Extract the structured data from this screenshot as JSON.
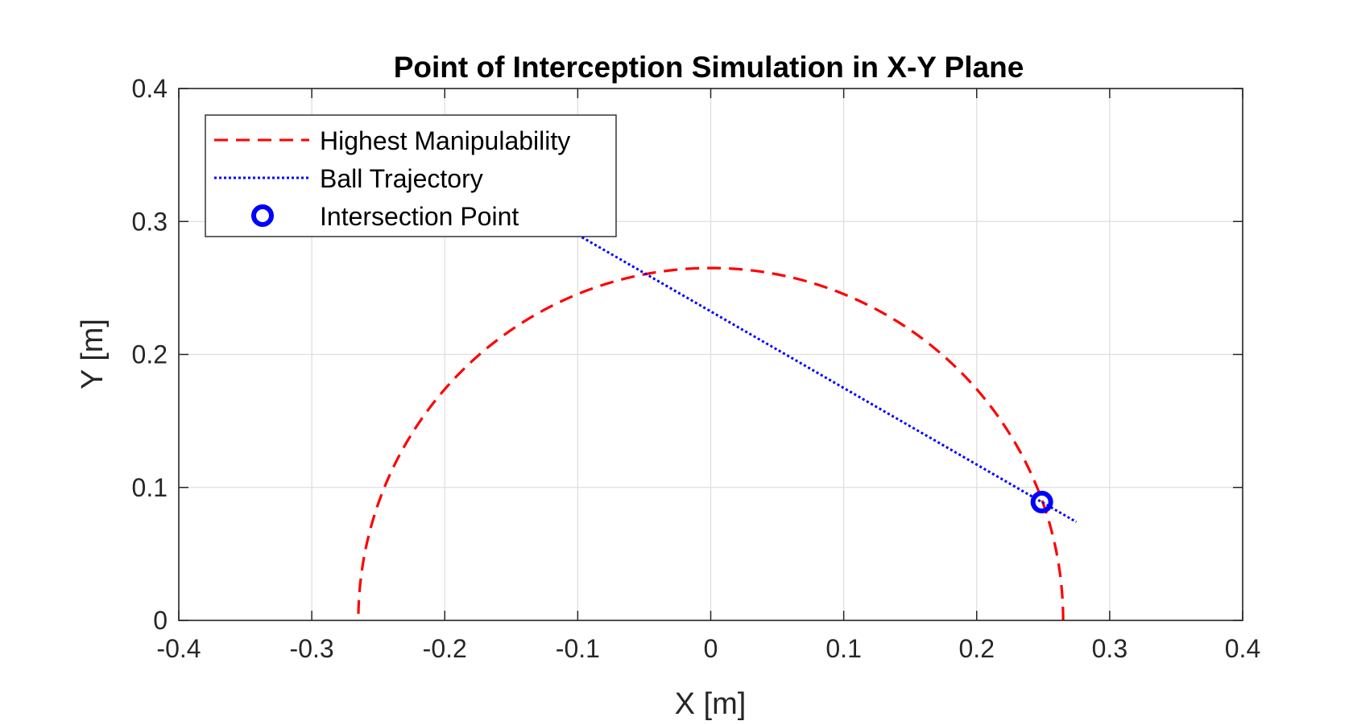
{
  "chart_data": {
    "type": "line",
    "title": "Point of Interception Simulation in X-Y Plane",
    "xlabel": "X [m]",
    "ylabel": "Y [m]",
    "xlim": [
      -0.4,
      0.4
    ],
    "ylim": [
      0,
      0.4
    ],
    "xticks": [
      -0.4,
      -0.3,
      -0.2,
      -0.1,
      0,
      0.1,
      0.2,
      0.3,
      0.4
    ],
    "yticks": [
      0,
      0.1,
      0.2,
      0.3,
      0.4
    ],
    "xtick_labels": [
      "-0.4",
      "-0.3",
      "-0.2",
      "-0.1",
      "0",
      "0.1",
      "0.2",
      "0.3",
      "0.4"
    ],
    "ytick_labels": [
      "0",
      "0.1",
      "0.2",
      "0.3",
      "0.4"
    ],
    "grid": true,
    "legend_position": "top-left",
    "series": [
      {
        "name": "Highest Manipulability",
        "style": "dashed",
        "color": "#ff0000",
        "shape": "semicircle",
        "center": [
          0,
          0
        ],
        "radius": 0.265
      },
      {
        "name": "Ball Trajectory",
        "style": "dotted",
        "color": "#0000ff",
        "x": [
          -0.1,
          0.275
        ],
        "y": [
          0.29,
          0.074
        ]
      },
      {
        "name": "Intersection Point",
        "style": "marker-circle",
        "color": "#0000ff",
        "x": [
          0.249
        ],
        "y": [
          0.089
        ]
      }
    ]
  }
}
